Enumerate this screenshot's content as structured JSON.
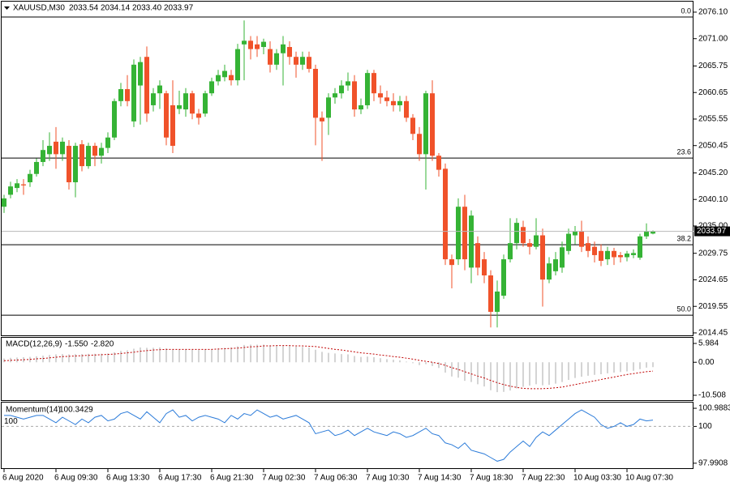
{
  "chart_data": [
    {
      "type": "candlestick",
      "title": "XAUUSD,M30",
      "ohlc_labels": [
        "2033.54",
        "2034.14",
        "2033.40",
        "2033.97"
      ],
      "up_color": "#35b335",
      "down_color": "#f0522a",
      "categories": [
        "6 Aug 2020",
        null,
        null,
        null,
        null,
        null,
        null,
        null,
        "6 Aug 09:30",
        null,
        null,
        null,
        null,
        null,
        null,
        null,
        "6 Aug 13:30",
        null,
        null,
        null,
        null,
        null,
        null,
        null,
        "6 Aug 17:30",
        null,
        null,
        null,
        null,
        null,
        null,
        null,
        "6 Aug 21:30",
        null,
        null,
        null,
        null,
        null,
        null,
        null,
        "7 Aug 02:30",
        null,
        null,
        null,
        null,
        null,
        null,
        null,
        "7 Aug 06:30",
        null,
        null,
        null,
        null,
        null,
        null,
        null,
        "7 Aug 10:30",
        null,
        null,
        null,
        null,
        null,
        null,
        null,
        "7 Aug 14:30",
        null,
        null,
        null,
        null,
        null,
        null,
        null,
        "7 Aug 18:30",
        null,
        null,
        null,
        null,
        null,
        null,
        null,
        "7 Aug 22:30",
        null,
        null,
        null,
        null,
        null,
        null,
        null,
        "10 Aug 03:30",
        null,
        null,
        null,
        null,
        null,
        null,
        null,
        "10 Aug 07:30",
        null,
        null,
        null,
        null
      ],
      "open": [
        2038.7,
        2041.0,
        2042.3,
        2043.0,
        2043.4,
        2045.0,
        2047.3,
        2048.8,
        2051.2,
        2048.8,
        2050.4,
        2043.4,
        2050.7,
        2046.5,
        2050.4,
        2048.5,
        2050.0,
        2052.0,
        2059.0,
        2061.3,
        2055.1,
        2062.0,
        2067.5,
        2058.2,
        2060.5,
        2060.5,
        2058.2,
        2057.5,
        2057.4,
        2060.5,
        2056.6,
        2056.6,
        2060.5,
        2062.8,
        2063.6,
        2064.0,
        2063.0,
        2069.9,
        2070.6,
        2069.9,
        2069.4,
        2069.0,
        2066.0,
        2068.2,
        2069.4,
        2067.5,
        2066.0,
        2067.5,
        2065.2,
        2055.8,
        2055.8,
        2059.7,
        2060.5,
        2062.0,
        2062.8,
        2057.4,
        2058.2,
        2064.4,
        2060.5,
        2059.7,
        2059.0,
        2058.2,
        2059.0,
        2055.8,
        2052.7,
        2048.8,
        2060.5,
        2048.5,
        2046.0,
        2028.6,
        2028.6,
        2038.7,
        2027.0,
        2031.7,
        2028.6,
        2025.5,
        2018.5,
        2021.6,
        2028.6,
        2031.7,
        2034.8,
        2031.7,
        2031.0,
        2033.2,
        2024.7,
        2026.3,
        2027.0,
        2030.2,
        2033.2,
        2034.0,
        2031.7,
        2031.0,
        2030.2,
        2028.6,
        2030.2,
        2029.4,
        2029.0,
        2029.4,
        2028.9,
        2033.0,
        2033.54
      ],
      "high": [
        2041.0,
        2043.5,
        2044.0,
        2044.0,
        2045.8,
        2048.0,
        2051.5,
        2053.0,
        2054.0,
        2052.0,
        2051.5,
        2051.0,
        2051.5,
        2051.0,
        2051.0,
        2051.0,
        2053.0,
        2059.5,
        2062.5,
        2064.0,
        2067.0,
        2067.5,
        2069.5,
        2061.5,
        2063.0,
        2061.0,
        2063.0,
        2061.0,
        2061.5,
        2061.0,
        2057.5,
        2061.0,
        2063.5,
        2065.0,
        2066.0,
        2065.0,
        2070.0,
        2074.5,
        2071.5,
        2071.5,
        2071.0,
        2070.5,
        2069.0,
        2071.5,
        2070.5,
        2068.5,
        2068.5,
        2068.5,
        2066.0,
        2057.0,
        2060.5,
        2061.5,
        2063.0,
        2064.5,
        2064.0,
        2059.5,
        2065.0,
        2065.0,
        2062.0,
        2061.0,
        2060.5,
        2060.0,
        2060.0,
        2056.5,
        2054.0,
        2061.0,
        2063.0,
        2049.0,
        2047.0,
        2029.5,
        2040.3,
        2041.0,
        2038.0,
        2033.0,
        2030.0,
        2026.5,
        2024.5,
        2029.5,
        2036.5,
        2036.5,
        2036.0,
        2032.5,
        2036.5,
        2034.5,
        2029.0,
        2030.0,
        2032.0,
        2034.5,
        2035.0,
        2036.0,
        2033.0,
        2032.0,
        2031.5,
        2031.0,
        2030.8,
        2030.0,
        2030.2,
        2030.5,
        2033.5,
        2035.5,
        2034.14
      ],
      "low": [
        2037.5,
        2040.3,
        2041.5,
        2041.0,
        2042.5,
        2044.5,
        2046.5,
        2047.5,
        2046.0,
        2047.5,
        2042.0,
        2040.5,
        2045.5,
        2046.0,
        2046.5,
        2047.0,
        2049.0,
        2051.5,
        2058.0,
        2058.0,
        2054.0,
        2054.5,
        2055.0,
        2057.0,
        2057.5,
        2050.5,
        2049.0,
        2056.5,
        2056.0,
        2055.5,
        2054.5,
        2056.0,
        2060.0,
        2062.0,
        2062.8,
        2062.0,
        2062.0,
        2063.0,
        2067.0,
        2067.5,
        2068.0,
        2064.5,
        2065.0,
        2062.0,
        2066.0,
        2063.5,
        2065.0,
        2064.5,
        2050.5,
        2047.5,
        2052.5,
        2058.5,
        2059.5,
        2061.0,
        2056.0,
        2056.5,
        2057.5,
        2059.0,
        2058.5,
        2058.0,
        2057.0,
        2057.0,
        2055.0,
        2051.5,
        2047.5,
        2042.0,
        2047.5,
        2044.5,
        2027.5,
        2023.0,
        2027.5,
        2026.5,
        2024.0,
        2025.5,
        2024.0,
        2015.5,
        2015.5,
        2021.0,
        2028.0,
        2030.5,
        2031.0,
        2029.5,
        2030.5,
        2019.5,
        2024.0,
        2025.5,
        2026.0,
        2029.5,
        2031.5,
        2030.0,
        2029.0,
        2028.0,
        2027.3,
        2027.5,
        2027.5,
        2028.0,
        2028.2,
        2028.8,
        2028.5,
        2032.5,
        2033.4
      ],
      "close": [
        2040.3,
        2042.6,
        2043.2,
        2042.8,
        2045.0,
        2047.3,
        2049.6,
        2050.4,
        2048.8,
        2051.2,
        2043.4,
        2050.4,
        2046.5,
        2050.4,
        2048.5,
        2050.0,
        2052.0,
        2059.0,
        2061.3,
        2059.0,
        2066.0,
        2066.5,
        2056.6,
        2060.5,
        2062.0,
        2052.0,
        2050.4,
        2058.2,
        2060.5,
        2056.6,
        2055.8,
        2060.5,
        2062.8,
        2064.0,
        2064.8,
        2063.0,
        2069.0,
        2070.6,
        2069.0,
        2069.0,
        2070.4,
        2066.0,
        2068.2,
        2069.9,
        2067.5,
        2066.0,
        2067.5,
        2065.2,
        2055.8,
        2055.1,
        2059.7,
        2060.5,
        2062.0,
        2062.8,
        2057.4,
        2058.2,
        2064.4,
        2060.5,
        2059.7,
        2059.0,
        2058.2,
        2059.0,
        2055.8,
        2052.7,
        2048.8,
        2060.5,
        2048.5,
        2045.8,
        2028.6,
        2027.5,
        2038.7,
        2028.6,
        2037.0,
        2027.0,
        2025.5,
        2018.5,
        2022.4,
        2028.6,
        2031.7,
        2035.6,
        2031.7,
        2031.0,
        2033.2,
        2024.7,
        2027.8,
        2028.6,
        2030.9,
        2033.5,
        2034.0,
        2031.0,
        2030.2,
        2029.4,
        2028.3,
        2030.2,
        2029.0,
        2029.0,
        2029.7,
        2029.8,
        2033.0,
        2034.0,
        2033.97
      ],
      "current_price": 2033.97,
      "fib_levels": [
        {
          "label": "0.0",
          "value": 2075.17
        },
        {
          "label": "23.6",
          "value": 2048.06
        },
        {
          "label": "38.2",
          "value": 2031.4
        },
        {
          "label": "50.0",
          "value": 2017.85
        }
      ],
      "ylim": [
        2013.98,
        2078.12
      ],
      "yticks": [
        {
          "value": 2076.1,
          "label": "2076.10"
        },
        {
          "value": 2071.0,
          "label": "2071.00"
        },
        {
          "value": 2065.75,
          "label": "2065.75"
        },
        {
          "value": 2060.65,
          "label": "2060.65"
        },
        {
          "value": 2055.55,
          "label": "2055.55"
        },
        {
          "value": 2050.45,
          "label": "2050.45"
        },
        {
          "value": 2045.2,
          "label": "2045.20"
        },
        {
          "value": 2040.1,
          "label": "2040.10"
        },
        {
          "value": 2035.0,
          "label": "2035.00"
        },
        {
          "value": 2029.75,
          "label": "2029.75"
        },
        {
          "value": 2024.65,
          "label": "2024.65"
        },
        {
          "value": 2019.55,
          "label": "2019.55"
        },
        {
          "value": 2014.45,
          "label": "2014.45"
        }
      ]
    },
    {
      "type": "macd",
      "title": "MACD(12,26,9)",
      "last_labels": [
        "-1.550",
        "-2.820"
      ],
      "series": [
        {
          "name": "MACD",
          "color": "#a8a8a8",
          "values": [
            1.2,
            1.4,
            1.5,
            1.6,
            1.7,
            1.9,
            2.1,
            2.3,
            2.5,
            2.6,
            2.5,
            2.6,
            2.6,
            2.7,
            2.7,
            2.7,
            2.8,
            3.2,
            3.6,
            3.8,
            4.3,
            4.7,
            4.6,
            4.6,
            4.7,
            4.4,
            4.1,
            4.1,
            4.2,
            4.0,
            3.9,
            4.0,
            4.2,
            4.4,
            4.6,
            4.7,
            5.1,
            5.5,
            5.6,
            5.6,
            5.6,
            5.4,
            5.3,
            5.3,
            5.2,
            5.0,
            4.9,
            4.7,
            4.0,
            3.3,
            3.0,
            2.8,
            2.6,
            2.5,
            2.0,
            1.7,
            1.8,
            1.6,
            1.3,
            1.0,
            0.8,
            0.6,
            0.2,
            -0.3,
            -0.9,
            -0.6,
            -1.2,
            -1.8,
            -3.3,
            -4.5,
            -4.9,
            -5.9,
            -6.3,
            -7.0,
            -7.7,
            -8.9,
            -9.5,
            -9.4,
            -9.0,
            -8.3,
            -7.8,
            -7.4,
            -7.0,
            -7.3,
            -7.2,
            -6.8,
            -6.3,
            -5.6,
            -5.0,
            -4.6,
            -4.3,
            -4.0,
            -3.8,
            -3.5,
            -3.3,
            -3.1,
            -2.9,
            -2.7,
            -2.2,
            -1.7,
            -1.55
          ]
        },
        {
          "name": "Signal",
          "color": "#c00000",
          "values": [
            0.5,
            0.6,
            0.7,
            0.8,
            0.9,
            1.1,
            1.2,
            1.4,
            1.6,
            1.8,
            1.9,
            2.0,
            2.1,
            2.2,
            2.3,
            2.4,
            2.5,
            2.6,
            2.8,
            3.0,
            3.2,
            3.5,
            3.7,
            3.9,
            4.0,
            4.1,
            4.1,
            4.1,
            4.1,
            4.1,
            4.1,
            4.1,
            4.1,
            4.2,
            4.3,
            4.4,
            4.5,
            4.7,
            4.9,
            5.0,
            5.2,
            5.2,
            5.3,
            5.3,
            5.3,
            5.2,
            5.2,
            5.1,
            5.0,
            4.7,
            4.4,
            4.1,
            3.9,
            3.6,
            3.3,
            3.0,
            2.8,
            2.6,
            2.3,
            2.1,
            1.8,
            1.6,
            1.3,
            1.0,
            0.6,
            0.3,
            0.0,
            -0.4,
            -1.0,
            -1.7,
            -2.3,
            -3.0,
            -3.7,
            -4.4,
            -5.0,
            -5.8,
            -6.5,
            -7.1,
            -7.6,
            -8.0,
            -8.3,
            -8.4,
            -8.4,
            -8.4,
            -8.3,
            -8.1,
            -7.9,
            -7.5,
            -7.1,
            -6.7,
            -6.3,
            -5.9,
            -5.5,
            -5.1,
            -4.7,
            -4.3,
            -3.9,
            -3.6,
            -3.3,
            -3.0,
            -2.82
          ]
        }
      ],
      "ylim": [
        -12.05,
        7.79
      ],
      "yticks": [
        5.984,
        {
          "value": 0,
          "label": "0.00"
        },
        -10.508
      ]
    },
    {
      "type": "line",
      "title": "Momentum(14)",
      "color": "#2b7bd9",
      "level": 100,
      "values": [
        100.6,
        100.6,
        100.5,
        100.4,
        100.5,
        100.6,
        100.6,
        100.4,
        100.2,
        100.5,
        100.3,
        100.1,
        100.4,
        100.2,
        100.5,
        100.6,
        100.3,
        100.4,
        100.7,
        100.8,
        100.6,
        100.4,
        100.8,
        100.5,
        100.2,
        100.7,
        100.9,
        100.5,
        100.6,
        100.3,
        100.5,
        100.6,
        100.5,
        100.4,
        100.2,
        100.6,
        100.4,
        100.7,
        100.6,
        100.9,
        100.7,
        100.5,
        100.6,
        100.4,
        100.5,
        100.6,
        100.4,
        100.2,
        99.6,
        99.7,
        99.8,
        99.5,
        99.6,
        99.8,
        99.5,
        99.7,
        99.9,
        99.7,
        99.6,
        99.5,
        99.7,
        99.6,
        99.4,
        99.5,
        99.7,
        99.9,
        99.6,
        99.5,
        99.1,
        99.0,
        98.8,
        99.1,
        98.7,
        98.6,
        98.5,
        98.3,
        98.1,
        98.2,
        98.6,
        98.9,
        99.2,
        98.9,
        99.4,
        99.7,
        99.5,
        99.8,
        100.1,
        100.4,
        100.7,
        100.9,
        100.7,
        100.5,
        100.1,
        99.9,
        100.0,
        100.2,
        100.0,
        100.1,
        100.4,
        100.3,
        100.3429
      ],
      "ylim": [
        97.72,
        101.3
      ],
      "yticks": [
        100.9883,
        100,
        97.9908
      ]
    }
  ]
}
